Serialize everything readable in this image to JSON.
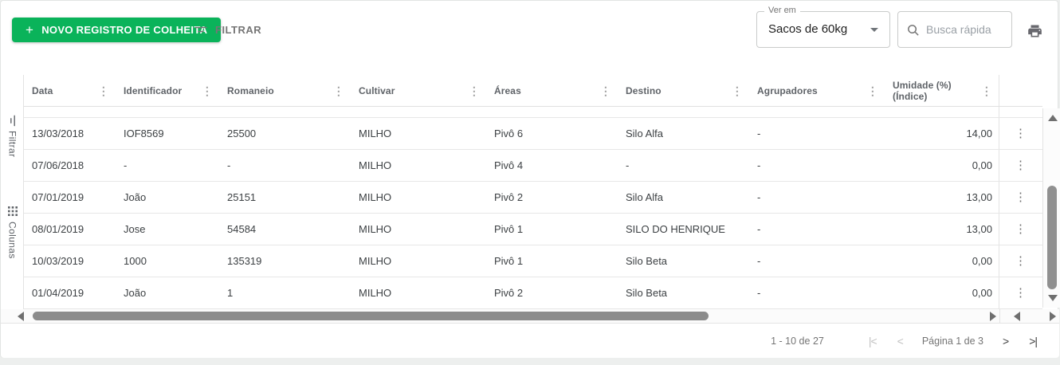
{
  "colors": {
    "accent_green": "#0ab35a"
  },
  "toolbar": {
    "plus": "+",
    "new_record_label": "NOVO REGISTRO DE COLHEITA",
    "filter_label": "FILTRAR",
    "view_in_label": "Ver em",
    "view_in_value": "Sacos de 60kg",
    "search_placeholder": "Busca rápida"
  },
  "side_rail": {
    "filter_tab": "Filtrar",
    "columns_tab": "Colunas"
  },
  "table": {
    "columns": [
      "Data",
      "Identificador",
      "Romaneio",
      "Cultivar",
      "Áreas",
      "Destino",
      "Agrupadores",
      "Umidade (%) (Índice)"
    ],
    "column_menu_icon": "⋮",
    "row_menu_icon": "⋮",
    "rows": [
      [
        "13/03/2018",
        "IOF8569",
        "25500",
        "MILHO",
        "Pivô 6",
        "Silo Alfa",
        "-",
        "14,00"
      ],
      [
        "07/06/2018",
        "-",
        "-",
        "MILHO",
        "Pivô 4",
        "-",
        "-",
        "0,00"
      ],
      [
        "07/01/2019",
        "João",
        "25151",
        "MILHO",
        "Pivô 2",
        "Silo Alfa",
        "-",
        "13,00"
      ],
      [
        "08/01/2019",
        "Jose",
        "54584",
        "MILHO",
        "Pivô 1",
        "SILO DO HENRIQUE",
        "-",
        "13,00"
      ],
      [
        "10/03/2019",
        "1000",
        "135319",
        "MILHO",
        "Pivô 1",
        "Silo Beta",
        "-",
        "0,00"
      ],
      [
        "01/04/2019",
        "João",
        "1",
        "MILHO",
        "Pivô 2",
        "Silo Beta",
        "-",
        "0,00"
      ]
    ]
  },
  "pagination": {
    "range_text": "1 - 10 de 27",
    "page_text": "Página 1 de 3",
    "first_icon": "|<",
    "prev_icon": "<",
    "next_icon": ">",
    "last_icon": ">|"
  }
}
